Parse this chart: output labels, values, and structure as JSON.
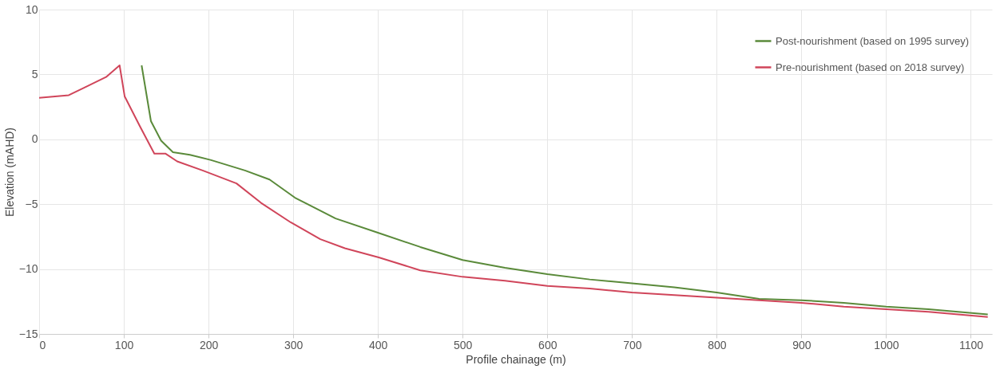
{
  "chart_data": {
    "type": "line",
    "xlabel": "Profile chainage (m)",
    "ylabel": "Elevation (mAHD)",
    "xlim": [
      0,
      1125
    ],
    "xticks": [
      0,
      100,
      200,
      300,
      400,
      500,
      600,
      700,
      800,
      900,
      1000,
      1100
    ],
    "ylim": [
      -15,
      10
    ],
    "yticks": [
      -15,
      -10,
      -5,
      0,
      5,
      10
    ],
    "grid": true,
    "legend": "top right",
    "marker": "none",
    "line_style": "solid",
    "series": [
      {
        "name": "Post-nourishment (based on 1995 survey)",
        "color": "#5a8a3a",
        "x": [
          121,
          132,
          144,
          158,
          178,
          203,
          243,
          272,
          302,
          350,
          400,
          450,
          500,
          550,
          600,
          650,
          700,
          750,
          800,
          850,
          900,
          950,
          1000,
          1050,
          1120
        ],
        "values": [
          5.7,
          1.4,
          -0.1,
          -1.0,
          -1.2,
          -1.6,
          -2.4,
          -3.1,
          -4.5,
          -6.1,
          -7.2,
          -8.3,
          -9.3,
          -9.9,
          -10.4,
          -10.8,
          -11.1,
          -11.4,
          -11.8,
          -12.3,
          -12.4,
          -12.6,
          -12.9,
          -13.1,
          -13.5
        ]
      },
      {
        "name": "Pre-nourishment (based on 2018 survey)",
        "color": "#d0455a",
        "x": [
          0,
          35,
          54,
          79,
          95,
          101,
          119,
          136,
          149,
          163,
          193,
          233,
          262,
          297,
          332,
          361,
          401,
          450,
          500,
          550,
          600,
          650,
          700,
          750,
          800,
          850,
          900,
          950,
          1000,
          1050,
          1120
        ],
        "values": [
          3.2,
          3.4,
          4.0,
          4.8,
          5.7,
          3.3,
          1.0,
          -1.1,
          -1.1,
          -1.7,
          -2.4,
          -3.4,
          -4.9,
          -6.4,
          -7.7,
          -8.4,
          -9.1,
          -10.1,
          -10.6,
          -10.9,
          -11.3,
          -11.5,
          -11.8,
          -12.0,
          -12.2,
          -12.4,
          -12.6,
          -12.9,
          -13.1,
          -13.3,
          -13.7
        ]
      }
    ]
  }
}
